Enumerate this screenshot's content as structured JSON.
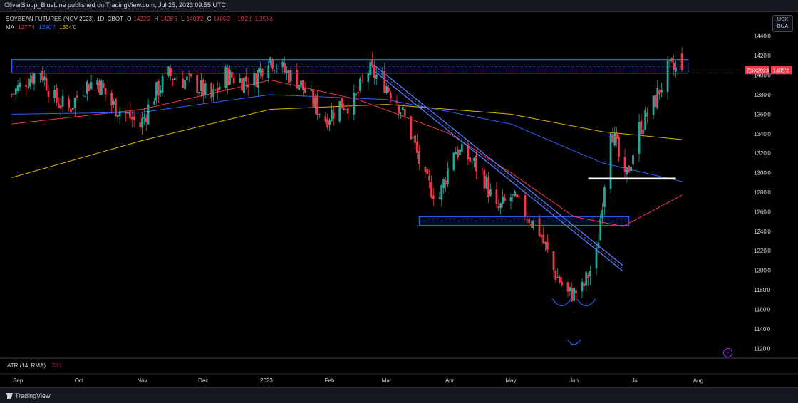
{
  "header": {
    "publisher_text": "OliverSloup_BlueLine published on TradingView.com, Jul 25, 2023 09:55 UTC"
  },
  "legend": {
    "title": "SOYBEAN FUTURES (NOV 2023), 1D, CBOT",
    "open_label": "O",
    "open": "1422'2",
    "high_label": "H",
    "high": "1428'6",
    "low_label": "L",
    "low": "1403'2",
    "close_label": "C",
    "close": "1405'2",
    "change": "−19'2 (−1.35%)",
    "ma_label": "MA",
    "ma_values": [
      "1277'4",
      "1290'7",
      "1334'0"
    ],
    "ma_colors": [
      "#f23645",
      "#2962ff",
      "#e0b400"
    ]
  },
  "currency_badge": {
    "line1": "USX",
    "line2": "BUA"
  },
  "price_axis": {
    "ticks": [
      "1440'0",
      "1420'0",
      "1400'0",
      "1380'0",
      "1360'0",
      "1340'0",
      "1320'0",
      "1300'0",
      "1280'0",
      "1260'0",
      "1240'0",
      "1220'0",
      "1200'0",
      "1180'0",
      "1160'0",
      "1140'0",
      "1120'0"
    ]
  },
  "price_label": {
    "symbol": "ZSX2023",
    "price": "1405'2"
  },
  "time_axis": {
    "labels": [
      "Sep",
      "Oct",
      "Nov",
      "Dec",
      "2023",
      "Feb",
      "Mar",
      "Apr",
      "May",
      "Jun",
      "Jul",
      "Aug"
    ]
  },
  "atr": {
    "label": "ATR (14, RMA)",
    "value": "33'1"
  },
  "footer": {
    "brand": "TradingView"
  },
  "colors": {
    "up": "#26a69a",
    "down": "#f23645",
    "zone": "#2962ff",
    "ma_slow": "#e0b400",
    "ma_mid": "#2962ff",
    "ma_fast": "#f23645"
  },
  "chart_data": {
    "type": "candlestick",
    "title": "SOYBEAN FUTURES (NOV 2023), 1D, CBOT",
    "y_range": [
      1110,
      1450
    ],
    "x_range": [
      "2022-08-26",
      "2023-08-22"
    ],
    "close_path": [
      [
        "2022-08-29",
        1380
      ],
      [
        "2022-09-05",
        1395
      ],
      [
        "2022-09-12",
        1405
      ],
      [
        "2022-09-19",
        1375
      ],
      [
        "2022-09-26",
        1365
      ],
      [
        "2022-10-03",
        1388
      ],
      [
        "2022-10-10",
        1395
      ],
      [
        "2022-10-17",
        1370
      ],
      [
        "2022-10-24",
        1360
      ],
      [
        "2022-10-31",
        1348
      ],
      [
        "2022-11-07",
        1380
      ],
      [
        "2022-11-14",
        1400
      ],
      [
        "2022-11-21",
        1395
      ],
      [
        "2022-11-28",
        1390
      ],
      [
        "2022-12-05",
        1375
      ],
      [
        "2022-12-12",
        1400
      ],
      [
        "2022-12-19",
        1395
      ],
      [
        "2022-12-26",
        1395
      ],
      [
        "2023-01-02",
        1420
      ],
      [
        "2023-01-09",
        1405
      ],
      [
        "2023-01-16",
        1395
      ],
      [
        "2023-01-23",
        1375
      ],
      [
        "2023-01-30",
        1355
      ],
      [
        "2023-02-06",
        1370
      ],
      [
        "2023-02-13",
        1372
      ],
      [
        "2023-02-20",
        1405
      ],
      [
        "2023-02-27",
        1395
      ],
      [
        "2023-03-06",
        1375
      ],
      [
        "2023-03-13",
        1340
      ],
      [
        "2023-03-20",
        1290
      ],
      [
        "2023-03-27",
        1275
      ],
      [
        "2023-04-03",
        1325
      ],
      [
        "2023-04-10",
        1315
      ],
      [
        "2023-04-17",
        1300
      ],
      [
        "2023-04-24",
        1260
      ],
      [
        "2023-05-01",
        1275
      ],
      [
        "2023-05-08",
        1260
      ],
      [
        "2023-05-15",
        1240
      ],
      [
        "2023-05-22",
        1200
      ],
      [
        "2023-05-29",
        1175
      ],
      [
        "2023-06-05",
        1180
      ],
      [
        "2023-06-12",
        1215
      ],
      [
        "2023-06-19",
        1350
      ],
      [
        "2023-06-26",
        1290
      ],
      [
        "2023-07-03",
        1345
      ],
      [
        "2023-07-10",
        1370
      ],
      [
        "2023-07-17",
        1405
      ],
      [
        "2023-07-24",
        1405
      ]
    ],
    "last_candle": {
      "date": "2023-07-24",
      "open": 1422.25,
      "high": 1428.75,
      "low": 1403.25,
      "close": 1405.25
    },
    "moving_averages": [
      {
        "name": "MA",
        "value": 1277.5,
        "path": [
          [
            "2022-08-29",
            1350
          ],
          [
            "2022-11-01",
            1365
          ],
          [
            "2023-01-03",
            1395
          ],
          [
            "2023-02-15",
            1375
          ],
          [
            "2023-04-01",
            1340
          ],
          [
            "2023-05-01",
            1300
          ],
          [
            "2023-06-01",
            1255
          ],
          [
            "2023-06-25",
            1245
          ],
          [
            "2023-07-24",
            1277
          ]
        ]
      },
      {
        "name": "MA",
        "value": 1290.875,
        "path": [
          [
            "2022-08-29",
            1360
          ],
          [
            "2022-11-01",
            1362
          ],
          [
            "2023-01-03",
            1380
          ],
          [
            "2023-03-01",
            1375
          ],
          [
            "2023-05-01",
            1350
          ],
          [
            "2023-06-15",
            1310
          ],
          [
            "2023-07-24",
            1291
          ]
        ]
      },
      {
        "name": "MA",
        "value": 1334.0,
        "path": [
          [
            "2022-08-29",
            1295
          ],
          [
            "2022-11-01",
            1333
          ],
          [
            "2023-01-03",
            1365
          ],
          [
            "2023-03-01",
            1370
          ],
          [
            "2023-05-01",
            1360
          ],
          [
            "2023-06-15",
            1342
          ],
          [
            "2023-07-24",
            1334
          ]
        ]
      }
    ],
    "drawings": {
      "resistance_zone": {
        "start": "2022-08-29",
        "end": "2023-07-27",
        "top": 1416,
        "bottom": 1402
      },
      "support_zone": {
        "start": "2023-03-17",
        "end": "2023-06-28",
        "top": 1255,
        "bottom": 1246
      },
      "downtrend_channel": {
        "start": [
          "2023-02-23",
          1410
        ],
        "end": [
          "2023-06-25",
          1205
        ],
        "width": 6
      },
      "neckline": {
        "start": "2023-06-08",
        "end": "2023-07-21",
        "price": 1294
      },
      "shoulder_arcs": [
        {
          "center": "2023-05-26",
          "price": 1165
        },
        {
          "center": "2023-06-01",
          "price": 1125
        },
        {
          "center": "2023-06-07",
          "price": 1165
        }
      ]
    }
  }
}
